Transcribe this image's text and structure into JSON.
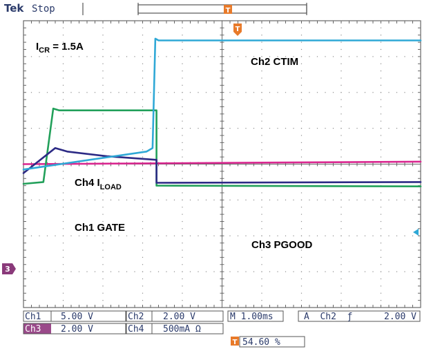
{
  "header": {
    "brand": "Tek",
    "run_state": "Stop"
  },
  "trigger_marker": "T",
  "ground_marker": "3",
  "annotation": {
    "main": "I",
    "sub": "CR",
    "rest": " = 1.5A"
  },
  "chart_data": {
    "type": "line",
    "title": "",
    "xlabel": "",
    "ylabel": "",
    "grid": true,
    "divisions": {
      "x": 10,
      "y": 8
    },
    "x_unit": "ms",
    "x_per_div": 1.0,
    "xlim": [
      -3.1,
      6.9
    ],
    "trigger_x_ms": 0.0,
    "series": [
      {
        "name": "Ch2 CTIM",
        "label_main": "Ch2 CTIM",
        "label_sub": "",
        "color": "#2fa8d6",
        "scale_per_div": "2.00 V",
        "values_div": [
          [
            -3.1,
            -0.15
          ],
          [
            0.0,
            0.35
          ],
          [
            0.15,
            0.45
          ],
          [
            0.22,
            3.5
          ],
          [
            0.3,
            3.45
          ],
          [
            6.9,
            3.45
          ]
        ]
      },
      {
        "name": "Ch4 ILOAD",
        "label_main": "Ch4 I",
        "label_sub": "LOAD",
        "color": "#22a05a",
        "scale_per_div": "500mA Ω",
        "values_div": [
          [
            -3.1,
            -0.55
          ],
          [
            -2.6,
            -0.5
          ],
          [
            -2.35,
            1.55
          ],
          [
            -2.2,
            1.5
          ],
          [
            0.25,
            1.5
          ],
          [
            0.25,
            -0.6
          ],
          [
            6.9,
            -0.62
          ]
        ]
      },
      {
        "name": "Ch1 GATE",
        "label_main": "Ch1 GATE",
        "label_sub": "",
        "color": "#2c2a85",
        "scale_per_div": "5.00 V",
        "values_div": [
          [
            -3.1,
            -0.25
          ],
          [
            -2.3,
            0.45
          ],
          [
            -2.0,
            0.35
          ],
          [
            -1.0,
            0.22
          ],
          [
            0.25,
            0.12
          ],
          [
            0.25,
            -0.52
          ],
          [
            6.9,
            -0.5
          ]
        ]
      },
      {
        "name": "Ch3 PGOOD",
        "label_main": "Ch3 PGOOD",
        "label_sub": "",
        "color": "#d9268f",
        "scale_per_div": "2.00 V",
        "values_div": [
          [
            -3.1,
            0.0
          ],
          [
            6.9,
            0.07
          ]
        ]
      }
    ]
  },
  "readout": {
    "ch1_name": "Ch1",
    "ch1_value": "5.00 V",
    "ch2_name": "Ch2",
    "ch2_value": "2.00 V",
    "ch3_name": "Ch3",
    "ch3_value": "2.00 V",
    "ch4_name": "Ch4",
    "ch4_value": "500mA Ω",
    "timebase": "M 1.00ms",
    "trigger": "A  Ch2  ƒ",
    "trigger_level": "2.00 V",
    "trigger_position": "54.60 %"
  }
}
